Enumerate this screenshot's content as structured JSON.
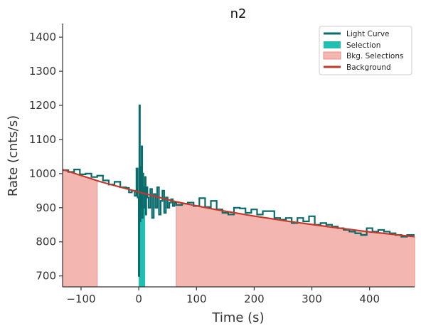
{
  "chart_data": {
    "type": "line",
    "title": "n2",
    "xlabel": "Time (s)",
    "ylabel": "Rate (cnts/s)",
    "xlim": [
      -132,
      478
    ],
    "ylim": [
      668,
      1440
    ],
    "xticks": [
      -100,
      0,
      100,
      200,
      300,
      400
    ],
    "yticks": [
      700,
      800,
      900,
      1000,
      1100,
      1200,
      1300,
      1400
    ],
    "grid": false,
    "legend_position": "top-right",
    "colors": {
      "light_curve": "#0a6b6b",
      "selection": "#1fbfb1",
      "bkg_selection": "#f4b6b1",
      "bkg_selection_edge": "#e8918a",
      "background": "#c0392b"
    },
    "series": [
      {
        "name": "Light Curve",
        "kind": "step",
        "x": [
          -132,
          -122,
          -112,
          -102,
          -92,
          -82,
          -72,
          -62,
          -52,
          -42,
          -32,
          -22,
          -17,
          -12,
          -7,
          -4,
          -2,
          0,
          1,
          2,
          3,
          4,
          5,
          6,
          7,
          8,
          9,
          10,
          11,
          12,
          13,
          15,
          17,
          20,
          23,
          26,
          29,
          32,
          35,
          38,
          41,
          44,
          47,
          50,
          53,
          56,
          59,
          62,
          65,
          75,
          85,
          95,
          105,
          115,
          125,
          135,
          145,
          155,
          165,
          175,
          185,
          195,
          205,
          215,
          225,
          235,
          245,
          255,
          265,
          275,
          285,
          295,
          305,
          315,
          325,
          335,
          345,
          355,
          365,
          375,
          385,
          395,
          405,
          415,
          425,
          435,
          445,
          455,
          465,
          478
        ],
        "y": [
          1010,
          1005,
          1012,
          998,
          1000,
          990,
          994,
          980,
          968,
          976,
          960,
          958,
          945,
          950,
          935,
          1015,
          930,
          700,
          1200,
          860,
          1020,
          900,
          1080,
          870,
          1000,
          940,
          960,
          900,
          990,
          880,
          960,
          930,
          900,
          955,
          870,
          940,
          900,
          960,
          880,
          920,
          950,
          885,
          930,
          900,
          915,
          925,
          905,
          915,
          908,
          912,
          915,
          905,
          928,
          902,
          920,
          895,
          885,
          880,
          900,
          898,
          885,
          895,
          880,
          890,
          890,
          870,
          865,
          870,
          855,
          870,
          860,
          875,
          850,
          855,
          850,
          845,
          840,
          835,
          830,
          825,
          820,
          840,
          830,
          835,
          830,
          825,
          820,
          815,
          820,
          820
        ]
      },
      {
        "name": "Background",
        "kind": "line",
        "x": [
          -132,
          -66,
          0,
          66,
          132,
          198,
          264,
          330,
          396,
          478
        ],
        "y": [
          1012,
          976,
          946,
          917,
          895,
          876,
          859,
          844,
          830,
          815
        ]
      }
    ],
    "selection": {
      "name": "Selection",
      "x_range": [
        0,
        11
      ]
    },
    "bkg_selections": {
      "name": "Bkg. Selections",
      "x_ranges": [
        [
          -132,
          -72
        ],
        [
          65,
          478
        ]
      ]
    }
  }
}
